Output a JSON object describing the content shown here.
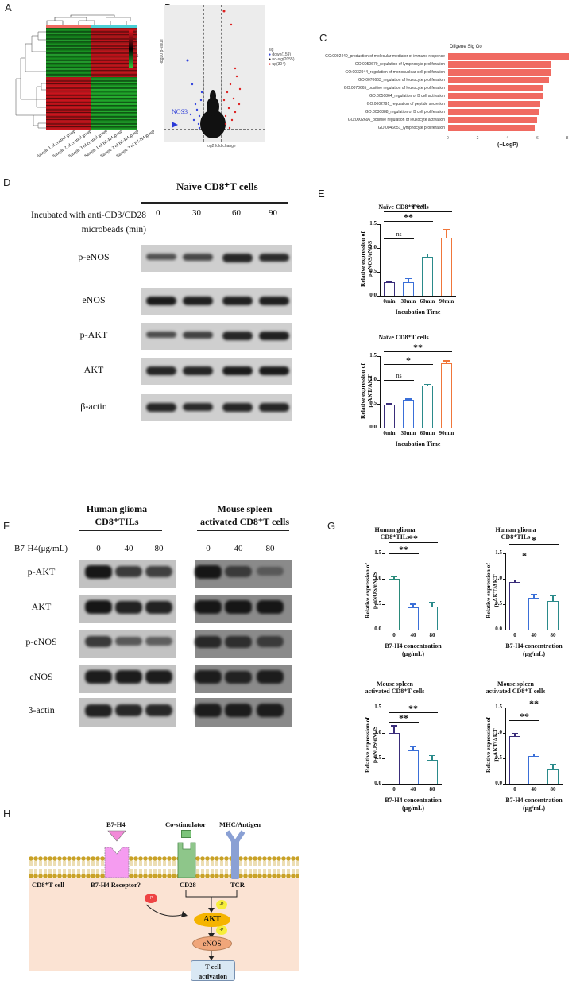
{
  "panels": {
    "A": {
      "label": "A",
      "type": "heatmap",
      "samples": [
        "Sample 1 of control group",
        "Sample 2 of control group",
        "Sample 3 of control group",
        "Sample 1 of B7-H4 group",
        "Sample 2 of B7-H4 group",
        "Sample 3 of B7-H4 group"
      ],
      "legend_ticks": [
        "2",
        "1",
        "0",
        "-1",
        "-2"
      ],
      "colors": {
        "high": "#e0141e",
        "mid": "#000000",
        "low": "#2ed13a"
      }
    },
    "B": {
      "label": "B",
      "type": "volcano",
      "xlabel": "log2 fold change",
      "ylabel": "-log10 p-value",
      "annotation": "NOS3",
      "legend_title": "sig",
      "legend": [
        "down(159)",
        "no-sig(2055)",
        "up(304)"
      ],
      "colors": {
        "down": "#3344dd",
        "nosig": "#111111",
        "up": "#dd2222"
      }
    },
    "C": {
      "label": "C",
      "title": "Difgene Sig Go",
      "xlabel": "(−LogP)",
      "ticks": [
        "0",
        "2",
        "4",
        "6",
        "8"
      ],
      "bar_color": "#f06a61"
    },
    "D": {
      "label": "D",
      "header": "Naïve CD8⁺T cells",
      "condition": "Incubated with anti-CD3/CD28 microbeads (min)",
      "timepoints": [
        "0",
        "30",
        "60",
        "90"
      ],
      "rows": [
        "p-eNOS",
        "eNOS",
        "p-AKT",
        "AKT",
        "β-actin"
      ]
    },
    "E": {
      "label": "E",
      "charts": [
        {
          "title": "Naïve CD8⁺T cells",
          "ylabel_line1": "Relative expression of",
          "ylabel_line2": "p-eNOS/eNOS",
          "xlabel": "Incubation Time",
          "sig": [
            {
              "text": "ns"
            },
            {
              "text": "**"
            },
            {
              "text": "***"
            }
          ]
        },
        {
          "title": "Naïve CD8⁺T cells",
          "ylabel_line1": "Relative expression of",
          "ylabel_line2": "p-AKT/AKT",
          "xlabel": "Incubation Time",
          "sig": [
            {
              "text": "ns"
            },
            {
              "text": "*"
            },
            {
              "text": "**"
            }
          ]
        }
      ]
    },
    "F": {
      "label": "F",
      "group1": "Human glioma CD8⁺TILs",
      "group1_line1": "Human glioma",
      "group1_line2": "CD8⁺TILs",
      "group2_line1": "Mouse spleen",
      "group2_line2": "activated CD8⁺T cells",
      "condition": "B7-H4(μg/mL)",
      "doses": [
        "0",
        "40",
        "80"
      ],
      "rows": [
        "p-AKT",
        "AKT",
        "p-eNOS",
        "eNOS",
        "β-actin"
      ]
    },
    "G": {
      "label": "G",
      "charts": [
        {
          "title1": "Human glioma",
          "title2": "CD8⁺TILs",
          "ylabel_line1": "Relative expression of",
          "ylabel_line2": "p-eNOS/eNOS",
          "xlabel1": "B7-H4 concentration",
          "xlabel2": "(μg/mL)",
          "sig": [
            "**",
            "**"
          ]
        },
        {
          "title1": "Human glioma",
          "title2": "CD8⁺TILs",
          "ylabel_line1": "Relative expression of",
          "ylabel_line2": "p-AKT/AKT",
          "xlabel1": "B7-H4 concentration",
          "xlabel2": "(μg/mL)",
          "sig": [
            "*",
            "*"
          ]
        },
        {
          "title1": "Mouse spleen",
          "title2": "activated CD8⁺T cells",
          "ylabel_line1": "Relative expression of",
          "ylabel_line2": "p-eNOS/eNOS",
          "xlabel1": "B7-H4 concentration",
          "xlabel2": "(μg/mL)",
          "sig": [
            "**",
            "**"
          ]
        },
        {
          "title1": "Mouse spleen",
          "title2": "activated CD8⁺T cells",
          "ylabel_line1": "Relative expression of",
          "ylabel_line2": "p-AKT/AKT",
          "xlabel1": "B7-H4 concentration",
          "xlabel2": "(μg/mL)",
          "sig": [
            "**",
            "**"
          ]
        }
      ]
    },
    "H": {
      "label": "H",
      "b7h4": "B7-H4",
      "costim": "Co-stimulator",
      "mhc": "MHC/Antigen",
      "cell": "CD8⁺T cell",
      "receptor": "B7-H4 Receptor?",
      "cd28": "CD28",
      "tcr": "TCR",
      "p": "-P",
      "akt": "AKT",
      "enos": "eNOS",
      "activation_line1": "T cell",
      "activation_line2": "activation"
    }
  },
  "chart_data": [
    {
      "type": "bar",
      "title": "Difgene Sig Go",
      "xlabel": "(−LogP)",
      "orientation": "horizontal",
      "categories": [
        "GO:0002440_production of molecular mediator of immune response",
        "GO:0050670_regulation of lymphocyte proliferation",
        "GO:0032944_regulation of mononuclear cell proliferation",
        "GO:0070663_regulation of leukocyte proliferation",
        "GO:0070665_positive regulation of leukocyte proliferation",
        "GO:0050864_regulation of B cell activation",
        "GO:0002791_regulation of peptide secretion",
        "GO:0030888_regulation of B cell proliferation",
        "GO:0002696_positive regulation of leukocyte activation",
        "GO:0046651_lymphocyte proliferation"
      ],
      "values": [
        8.1,
        6.9,
        6.85,
        6.75,
        6.4,
        6.3,
        6.15,
        6.05,
        5.95,
        5.8
      ],
      "xlim": [
        0,
        8.5
      ]
    },
    {
      "type": "bar",
      "title": "Naïve CD8⁺T cells",
      "ylabel": "Relative expression of p-eNOS/eNOS",
      "xlabel": "Incubation Time",
      "categories": [
        "0min",
        "30min",
        "60min",
        "90min"
      ],
      "values": [
        0.28,
        0.29,
        0.82,
        1.21
      ],
      "errors": [
        0.02,
        0.08,
        0.06,
        0.19
      ],
      "colors": [
        "#3a2d7a",
        "#3a6fd8",
        "#2a8a8a",
        "#f0763a"
      ],
      "yticks": [
        0.0,
        0.5,
        1.0,
        1.5
      ],
      "ylim": [
        0,
        1.5
      ],
      "significance": [
        {
          "pair": [
            "0min",
            "30min"
          ],
          "label": "ns"
        },
        {
          "pair": [
            "0min",
            "60min"
          ],
          "label": "**"
        },
        {
          "pair": [
            "0min",
            "90min"
          ],
          "label": "***"
        }
      ]
    },
    {
      "type": "bar",
      "title": "Naïve CD8⁺T cells",
      "ylabel": "Relative expression of p-AKT/AKT",
      "xlabel": "Incubation Time",
      "categories": [
        "0min",
        "30min",
        "60min",
        "90min"
      ],
      "values": [
        0.48,
        0.59,
        0.89,
        1.35
      ],
      "errors": [
        0.03,
        0.02,
        0.03,
        0.06
      ],
      "colors": [
        "#3a2d7a",
        "#3a6fd8",
        "#2a8a8a",
        "#f0763a"
      ],
      "yticks": [
        0.0,
        0.5,
        1.0,
        1.5
      ],
      "ylim": [
        0,
        1.5
      ],
      "significance": [
        {
          "pair": [
            "0min",
            "30min"
          ],
          "label": "ns"
        },
        {
          "pair": [
            "0min",
            "60min"
          ],
          "label": "*"
        },
        {
          "pair": [
            "0min",
            "90min"
          ],
          "label": "**"
        }
      ]
    },
    {
      "type": "bar",
      "title": "Human glioma CD8⁺TILs",
      "ylabel": "Relative expression of p-eNOS/eNOS",
      "xlabel": "B7-H4 concentration (μg/mL)",
      "categories": [
        "0",
        "40",
        "80"
      ],
      "values": [
        1.0,
        0.43,
        0.46
      ],
      "errors": [
        0.05,
        0.08,
        0.08
      ],
      "colors": [
        "#2a8a7a",
        "#3a6fd8",
        "#2a8a8a"
      ],
      "yticks": [
        0.0,
        0.5,
        1.0,
        1.5
      ],
      "ylim": [
        0,
        1.5
      ],
      "significance": [
        {
          "pair": [
            "0",
            "40"
          ],
          "label": "**"
        },
        {
          "pair": [
            "0",
            "80"
          ],
          "label": "**"
        }
      ]
    },
    {
      "type": "bar",
      "title": "Human glioma CD8⁺TILs",
      "ylabel": "Relative expression of p-AKT/AKT",
      "xlabel": "B7-H4 concentration (μg/mL)",
      "categories": [
        "0",
        "40",
        "80"
      ],
      "values": [
        0.93,
        0.63,
        0.57
      ],
      "errors": [
        0.05,
        0.08,
        0.1
      ],
      "colors": [
        "#3a2d7a",
        "#3a6fd8",
        "#2a8a8a"
      ],
      "yticks": [
        0.0,
        0.5,
        1.0,
        1.5
      ],
      "ylim": [
        0,
        1.5
      ],
      "significance": [
        {
          "pair": [
            "0",
            "40"
          ],
          "label": "*"
        },
        {
          "pair": [
            "0",
            "80"
          ],
          "label": "*"
        }
      ]
    },
    {
      "type": "bar",
      "title": "Mouse spleen activated CD8⁺T cells",
      "ylabel": "Relative expression of p-eNOS/eNOS",
      "xlabel": "B7-H4 concentration (μg/mL)",
      "categories": [
        "0",
        "40",
        "80"
      ],
      "values": [
        1.0,
        0.66,
        0.47
      ],
      "errors": [
        0.15,
        0.07,
        0.1
      ],
      "colors": [
        "#3a2d7a",
        "#3a6fd8",
        "#2a8a8a"
      ],
      "yticks": [
        0.0,
        0.5,
        1.0,
        1.5
      ],
      "ylim": [
        0,
        1.5
      ],
      "significance": [
        {
          "pair": [
            "0",
            "40"
          ],
          "label": "**"
        },
        {
          "pair": [
            "0",
            "80"
          ],
          "label": "**"
        }
      ]
    },
    {
      "type": "bar",
      "title": "Mouse spleen activated CD8⁺T cells",
      "ylabel": "Relative expression of p-AKT/AKT",
      "xlabel": "B7-H4 concentration (μg/mL)",
      "categories": [
        "0",
        "40",
        "80"
      ],
      "values": [
        0.93,
        0.54,
        0.29
      ],
      "errors": [
        0.07,
        0.05,
        0.1
      ],
      "colors": [
        "#3a2d7a",
        "#3a6fd8",
        "#2a8a8a"
      ],
      "yticks": [
        0.0,
        0.5,
        1.0,
        1.5
      ],
      "ylim": [
        0,
        1.5
      ],
      "significance": [
        {
          "pair": [
            "0",
            "40"
          ],
          "label": "**"
        },
        {
          "pair": [
            "0",
            "80"
          ],
          "label": "**"
        }
      ]
    }
  ]
}
